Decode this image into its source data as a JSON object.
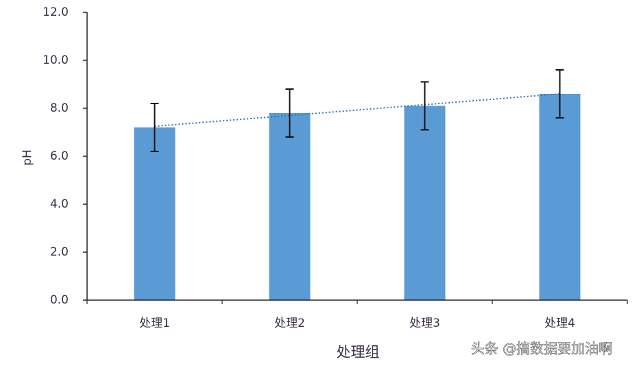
{
  "chart_data": {
    "type": "bar",
    "categories": [
      "处理1",
      "处理2",
      "处理3",
      "处理4"
    ],
    "values": [
      7.2,
      7.8,
      8.1,
      8.6
    ],
    "errors": [
      1.0,
      1.0,
      1.0,
      1.0
    ],
    "color": "#5b9bd5",
    "trendline": true,
    "trendline_color": "#2e75b6",
    "ylim": [
      0,
      12
    ],
    "yticks": [
      {
        "value": 0,
        "label": "0.0"
      },
      {
        "value": 2,
        "label": "2.0"
      },
      {
        "value": 4,
        "label": "4.0"
      },
      {
        "value": 6,
        "label": "6.0"
      },
      {
        "value": 8,
        "label": "8.0"
      },
      {
        "value": 10,
        "label": "10.0"
      },
      {
        "value": 12,
        "label": "12.0"
      }
    ],
    "y_label": "pH",
    "x_label": "处理组",
    "watermark": "头条 @搞数据要加油啊"
  }
}
